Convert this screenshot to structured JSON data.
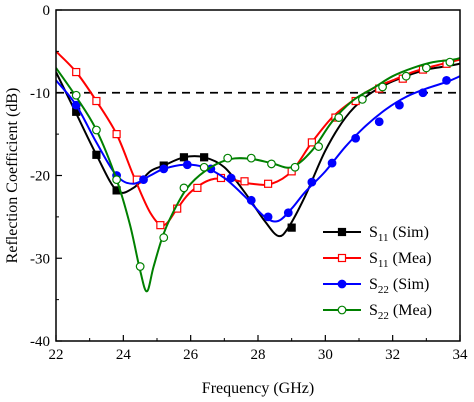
{
  "chart_data": {
    "type": "line",
    "title": "",
    "xlabel": "Frequency (GHz)",
    "ylabel": "Reflection Coefficient (dB)",
    "xlim": [
      22,
      34
    ],
    "ylim": [
      -40,
      0
    ],
    "xticks": [
      "22",
      "24",
      "26",
      "28",
      "30",
      "32",
      "34"
    ],
    "yticks": [
      "0",
      "-10",
      "-20",
      "-30",
      "-40"
    ],
    "xtick_values": [
      22,
      24,
      26,
      28,
      30,
      32,
      34
    ],
    "ytick_values": [
      0,
      -10,
      -20,
      -30,
      -40
    ],
    "reference_line": {
      "y": -10,
      "style": "dashed",
      "color": "#000000"
    },
    "legend": {
      "placement": "bottom-right"
    },
    "series": [
      {
        "name": "S11 (Sim)",
        "label_main": "S",
        "label_sub": "11",
        "label_suffix": " (Sim)",
        "color": "#000000",
        "marker": "square-filled",
        "x": [
          22,
          22.6,
          23.2,
          23.8,
          24.3,
          24.8,
          25.2,
          25.8,
          26.4,
          27.0,
          27.6,
          28.2,
          28.6,
          28.9,
          29.4,
          30.0,
          30.6,
          31.2,
          31.8,
          32.4,
          33.0,
          33.6,
          34
        ],
        "y": [
          -7.5,
          -12.5,
          -17.5,
          -21.8,
          -21.5,
          -19.5,
          -18.8,
          -17.8,
          -17.8,
          -19.0,
          -22.0,
          -25.5,
          -27.3,
          -26.3,
          -22.5,
          -17.0,
          -13.0,
          -10.5,
          -9.0,
          -8.0,
          -7.2,
          -6.8,
          -6.5
        ],
        "marker_x": [
          22.6,
          23.2,
          23.8,
          25.2,
          25.8,
          26.4,
          29.0
        ],
        "marker_y": [
          -12.3,
          -17.5,
          -21.8,
          -18.8,
          -17.8,
          -17.8,
          -26.3
        ]
      },
      {
        "name": "S11 (Mea)",
        "label_main": "S",
        "label_sub": "11",
        "label_suffix": " (Mea)",
        "color": "#ff0000",
        "marker": "square-open",
        "x": [
          22,
          22.6,
          23.2,
          23.8,
          24.3,
          24.8,
          25.2,
          25.6,
          26.0,
          26.6,
          27.2,
          27.8,
          28.4,
          29.0,
          29.6,
          30.2,
          30.8,
          31.4,
          32.0,
          32.6,
          33.2,
          33.8,
          34
        ],
        "y": [
          -5.0,
          -7.5,
          -11.0,
          -15.0,
          -20.0,
          -24.5,
          -26.0,
          -24.0,
          -22.0,
          -20.5,
          -20.5,
          -21.0,
          -21.0,
          -19.5,
          -16.0,
          -13.0,
          -11.0,
          -9.5,
          -8.5,
          -7.5,
          -6.8,
          -6.2,
          -6.0
        ],
        "marker_x": [
          22.6,
          23.2,
          23.8,
          24.4,
          25.1,
          25.6,
          26.2,
          26.9,
          27.6,
          28.3,
          29.0,
          29.6,
          30.3,
          30.9,
          31.6,
          32.3,
          32.9,
          33.6
        ],
        "marker_y": [
          -7.5,
          -11.0,
          -15.0,
          -20.5,
          -26.0,
          -24.0,
          -21.5,
          -20.3,
          -20.7,
          -21.0,
          -19.5,
          -16.0,
          -13.0,
          -11.0,
          -9.5,
          -8.3,
          -7.2,
          -6.5
        ]
      },
      {
        "name": "S22 (Sim)",
        "label_main": "S",
        "label_sub": "22",
        "label_suffix": " (Sim)",
        "color": "#0000ff",
        "marker": "circle-filled",
        "x": [
          22,
          22.6,
          23.2,
          23.8,
          24.3,
          24.8,
          25.2,
          25.8,
          26.4,
          27.0,
          27.6,
          28.2,
          28.6,
          29.0,
          29.4,
          30.0,
          30.6,
          31.2,
          31.8,
          32.4,
          33.0,
          33.6,
          34
        ],
        "y": [
          -8.5,
          -11.5,
          -16.0,
          -20.0,
          -21.0,
          -20.0,
          -19.2,
          -18.7,
          -19.0,
          -20.3,
          -22.5,
          -25.0,
          -25.5,
          -24.0,
          -22.0,
          -19.5,
          -16.5,
          -14.0,
          -12.0,
          -10.5,
          -9.5,
          -8.7,
          -8.0
        ],
        "marker_x": [
          22.6,
          23.8,
          24.6,
          25.2,
          25.9,
          26.6,
          27.2,
          27.8,
          28.3,
          28.9,
          29.6,
          30.2,
          30.9,
          31.6,
          32.2,
          32.9,
          33.6
        ],
        "marker_y": [
          -11.5,
          -20.0,
          -20.5,
          -19.2,
          -18.7,
          -19.2,
          -20.3,
          -23.0,
          -25.0,
          -24.5,
          -20.8,
          -18.5,
          -15.5,
          -13.5,
          -11.5,
          -10.0,
          -8.5
        ]
      },
      {
        "name": "S22 (Mea)",
        "label_main": "S",
        "label_sub": "22",
        "label_suffix": " (Mea)",
        "color": "#008000",
        "marker": "circle-open",
        "x": [
          22,
          22.6,
          23.2,
          23.8,
          24.2,
          24.5,
          24.7,
          24.9,
          25.2,
          25.6,
          26.0,
          26.6,
          27.2,
          27.8,
          28.4,
          29.0,
          29.6,
          30.2,
          30.8,
          31.4,
          32.0,
          32.6,
          33.2,
          33.8,
          34
        ],
        "y": [
          -7.0,
          -10.5,
          -14.5,
          -20.5,
          -26.0,
          -31.5,
          -34.0,
          -31.0,
          -27.0,
          -23.5,
          -21.0,
          -19.0,
          -18.0,
          -18.0,
          -18.5,
          -19.0,
          -17.0,
          -13.5,
          -11.0,
          -9.5,
          -8.0,
          -7.0,
          -6.3,
          -6.0,
          -5.8
        ],
        "marker_x": [
          22.6,
          23.2,
          23.8,
          24.5,
          25.2,
          25.8,
          26.4,
          27.1,
          27.8,
          28.4,
          29.1,
          29.8,
          30.4,
          31.1,
          31.7,
          32.4,
          33.0,
          33.7
        ],
        "marker_y": [
          -10.3,
          -14.5,
          -20.5,
          -31.0,
          -27.5,
          -21.5,
          -19.0,
          -17.9,
          -17.9,
          -18.6,
          -19.0,
          -16.5,
          -13.0,
          -10.8,
          -9.3,
          -8.0,
          -7.0,
          -6.3
        ]
      }
    ]
  }
}
